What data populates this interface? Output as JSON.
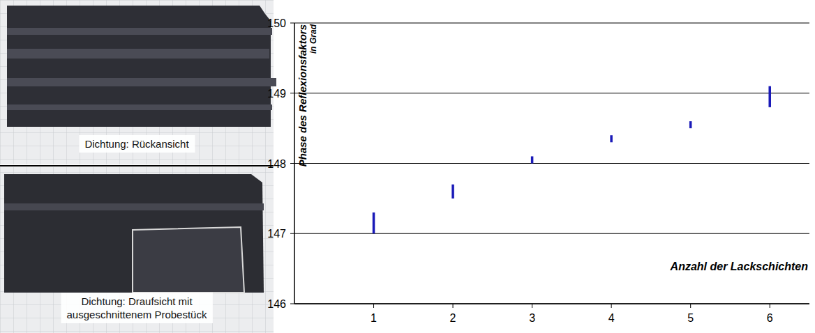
{
  "chart_data": {
    "type": "errorbar",
    "ylabel": "Phase des Reflexionsfaktors",
    "ylabel_unit": "in Grad",
    "xlabel": "Anzahl der Lackschichten",
    "x": [
      1,
      2,
      3,
      4,
      5,
      6
    ],
    "values": [
      147.15,
      147.6,
      148.05,
      148.35,
      148.55,
      148.95
    ],
    "errors": [
      0.15,
      0.1,
      0.05,
      0.05,
      0.05,
      0.15
    ],
    "color": "#1a1ab8",
    "xlim": [
      0,
      6.5
    ],
    "xticks": [
      1,
      2,
      3,
      4,
      5,
      6
    ],
    "ylim": [
      146,
      150
    ],
    "yticks": [
      146,
      147,
      148,
      149,
      150
    ],
    "grid": true
  },
  "photos": [
    {
      "caption_lines": [
        "Dichtung: Rückansicht"
      ]
    },
    {
      "caption_lines": [
        "Dichtung: Draufsicht mit",
        "ausgeschnittenem Probestück"
      ]
    }
  ]
}
